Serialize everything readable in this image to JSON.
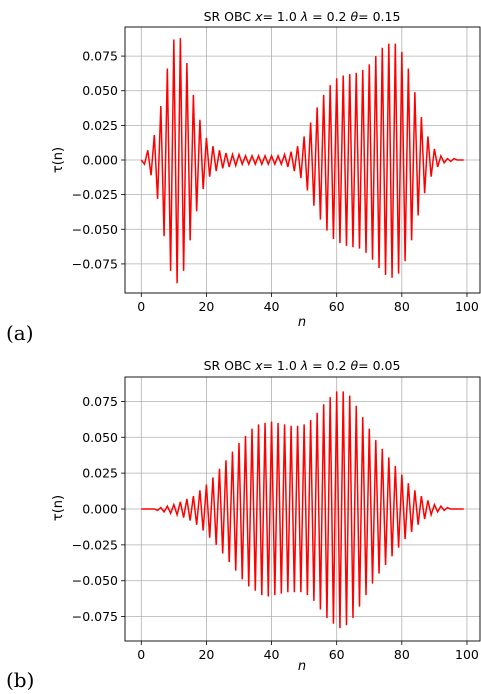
{
  "chart_data": [
    {
      "type": "line",
      "panel_label": "(a)",
      "title_parts": {
        "pre": "SR OBC ",
        "x_sym": "x",
        "x_val": "= 1.0 ",
        "lam_sym": "λ",
        "lam_val": " = 0.2 ",
        "theta_sym": "θ",
        "theta_val": "= 0.15"
      },
      "xlabel": "n",
      "ylabel": "τ(n)",
      "xlim": [
        -5,
        104
      ],
      "ylim": [
        -0.096,
        0.096
      ],
      "x_ticks": [
        "0",
        "20",
        "40",
        "60",
        "80",
        "100"
      ],
      "y_ticks": [
        "0.075",
        "0.050",
        "0.025",
        "0.000",
        "−0.025",
        "−0.050",
        "−0.075"
      ],
      "grid": true,
      "color": "#ff0000",
      "series": [
        {
          "x_start": 0,
          "x_step": 1,
          "y": [
            0.0,
            -0.003,
            0.007,
            -0.011,
            0.018,
            -0.028,
            0.039,
            -0.055,
            0.066,
            -0.08,
            0.087,
            -0.089,
            0.088,
            -0.08,
            0.07,
            -0.058,
            0.047,
            -0.037,
            0.029,
            -0.021,
            0.016,
            -0.012,
            0.01,
            -0.008,
            0.007,
            -0.006,
            0.005,
            -0.005,
            0.004,
            -0.004,
            0.004,
            -0.003,
            0.003,
            -0.003,
            0.003,
            -0.003,
            0.003,
            -0.003,
            0.003,
            -0.003,
            0.003,
            -0.003,
            0.003,
            -0.003,
            0.004,
            -0.005,
            0.006,
            -0.008,
            0.01,
            -0.013,
            0.017,
            -0.022,
            0.027,
            -0.033,
            0.038,
            -0.043,
            0.047,
            -0.051,
            0.054,
            -0.057,
            0.059,
            -0.06,
            0.061,
            -0.062,
            0.062,
            -0.063,
            0.063,
            -0.064,
            0.065,
            -0.067,
            0.069,
            -0.072,
            0.075,
            -0.078,
            0.081,
            -0.083,
            0.084,
            -0.085,
            0.084,
            -0.082,
            0.078,
            -0.073,
            0.066,
            -0.058,
            0.049,
            -0.04,
            0.031,
            -0.024,
            0.017,
            -0.012,
            0.008,
            -0.005,
            0.003,
            -0.002,
            0.001,
            -0.001,
            0.001,
            0.0,
            0.0,
            0.0
          ]
        }
      ]
    },
    {
      "type": "line",
      "panel_label": "(b)",
      "title_parts": {
        "pre": "SR OBC ",
        "x_sym": "x",
        "x_val": "= 1.0 ",
        "lam_sym": "λ",
        "lam_val": " = 0.2 ",
        "theta_sym": "θ",
        "theta_val": "= 0.05"
      },
      "xlabel": "n",
      "ylabel": "τ(n)",
      "xlim": [
        -5,
        104
      ],
      "ylim": [
        -0.092,
        0.092
      ],
      "x_ticks": [
        "0",
        "20",
        "40",
        "60",
        "80",
        "100"
      ],
      "y_ticks": [
        "0.075",
        "0.050",
        "0.025",
        "0.000",
        "−0.025",
        "−0.050",
        "−0.075"
      ],
      "grid": true,
      "color": "#ff0000",
      "series": [
        {
          "x_start": 0,
          "x_step": 1,
          "y": [
            0.0,
            0.0,
            0.0,
            0.0,
            0.0,
            -0.001,
            0.001,
            -0.002,
            0.002,
            -0.003,
            0.003,
            -0.004,
            0.005,
            -0.006,
            0.007,
            -0.008,
            0.009,
            -0.011,
            0.013,
            -0.015,
            0.017,
            -0.02,
            0.022,
            -0.025,
            0.028,
            -0.031,
            0.034,
            -0.037,
            0.04,
            -0.043,
            0.046,
            -0.049,
            0.051,
            -0.054,
            0.056,
            -0.057,
            0.059,
            -0.06,
            0.06,
            -0.061,
            0.061,
            -0.06,
            0.06,
            -0.059,
            0.059,
            -0.058,
            0.058,
            -0.058,
            0.058,
            -0.058,
            0.059,
            -0.06,
            0.062,
            -0.064,
            0.067,
            -0.07,
            0.073,
            -0.076,
            0.078,
            -0.08,
            0.082,
            -0.083,
            0.082,
            -0.081,
            0.079,
            -0.076,
            0.072,
            -0.068,
            0.064,
            -0.06,
            0.056,
            -0.052,
            0.048,
            -0.045,
            0.042,
            -0.039,
            0.036,
            -0.033,
            0.03,
            -0.027,
            0.024,
            -0.021,
            0.018,
            -0.016,
            0.013,
            -0.011,
            0.009,
            -0.007,
            0.006,
            -0.004,
            0.003,
            -0.002,
            0.002,
            -0.001,
            0.001,
            0.0,
            0.0,
            0.0,
            0.0,
            0.0
          ]
        }
      ]
    }
  ]
}
